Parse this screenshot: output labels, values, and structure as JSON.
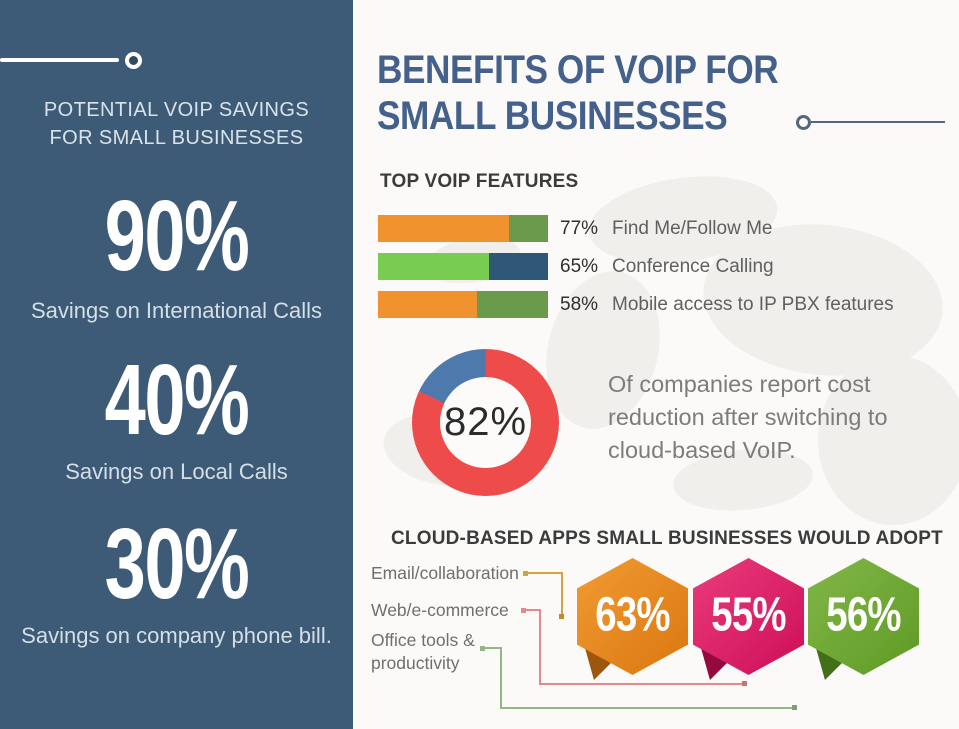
{
  "header": {
    "title_line1": "BENEFITS OF VOIP FOR",
    "title_line2": "SMALL BUSINESSES"
  },
  "sidebar": {
    "heading_line1": "POTENTIAL VOIP SAVINGS",
    "heading_line2": "FOR SMALL BUSINESSES",
    "stats": [
      {
        "value": "90%",
        "label": "Savings on International Calls"
      },
      {
        "value": "40%",
        "label": "Savings on Local Calls"
      },
      {
        "value": "30%",
        "label": "Savings on company phone bill."
      }
    ]
  },
  "chart_data": [
    {
      "type": "bar",
      "orientation": "horizontal",
      "title": "TOP VOIP FEATURES",
      "categories": [
        "Find Me/Follow Me",
        "Conference Calling",
        "Mobile access to IP PBX features"
      ],
      "values": [
        77,
        65,
        58
      ],
      "value_labels": [
        "77%",
        "65%",
        "58%"
      ],
      "xlim": [
        0,
        100
      ],
      "bar_fill_colors": [
        "#f0922d",
        "#78cc51",
        "#f0922d"
      ],
      "bar_remainder_colors": [
        "#6b9a4c",
        "#2f5778",
        "#6b9a4c"
      ]
    },
    {
      "type": "pie",
      "subtype": "donut",
      "values": [
        82,
        18
      ],
      "colors": [
        "#ee4b4b",
        "#4d79ad"
      ],
      "center_label": "82%",
      "caption": "Of companies report cost reduction after switching to cloud-based VoIP."
    },
    {
      "type": "bar",
      "subtype": "hexagon-badges",
      "title": "CLOUD-BASED APPS SMALL BUSINESSES WOULD ADOPT",
      "categories": [
        "Email/collaboration",
        "Web/e-commerce",
        "Office tools & productivity"
      ],
      "values": [
        63,
        55,
        56
      ],
      "value_labels": [
        "63%",
        "55%",
        "56%"
      ],
      "colors": [
        "#e8821e",
        "#df1f66",
        "#6da32e"
      ],
      "gradients": [
        [
          "#f29b33",
          "#da7710"
        ],
        [
          "#ea3c7c",
          "#cd0e57"
        ],
        [
          "#82b748",
          "#5f9a24"
        ]
      ]
    }
  ],
  "colors": {
    "sidebar_bg": "#3d5b76",
    "main_bg": "#fbfaf8",
    "title": "#44618c",
    "section_heading": "#3b3b3b",
    "map_watermark": "#f0efec",
    "connector_orange": "#d6a13f",
    "connector_red": "#e08a8a",
    "connector_green": "#94b585"
  }
}
